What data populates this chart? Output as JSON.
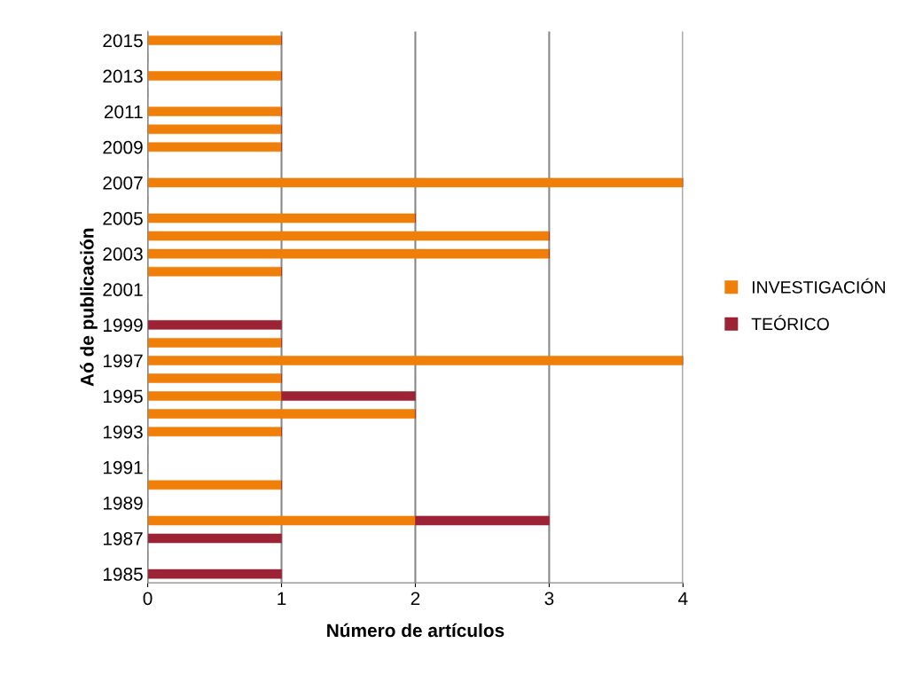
{
  "chart_data": {
    "type": "bar",
    "orientation": "horizontal",
    "stacked": true,
    "xlabel": "Número de artículos",
    "ylabel": "Aó de publicación",
    "categories": [
      "2015",
      null,
      "2013",
      null,
      "2011",
      null,
      "2009",
      null,
      "2007",
      null,
      "2005",
      null,
      "2003",
      null,
      "2001",
      null,
      "1999",
      null,
      "1997",
      null,
      "1995",
      null,
      "1993",
      null,
      "1991",
      null,
      "1989",
      null,
      "1987",
      null,
      "1985"
    ],
    "series": [
      {
        "name": "INVESTIGACIÓN",
        "color": "#f07f09",
        "values": [
          1,
          0,
          1,
          0,
          1,
          1,
          1,
          0,
          4,
          0,
          2,
          3,
          3,
          1,
          0,
          0,
          0,
          1,
          4,
          1,
          1,
          2,
          1,
          0,
          0,
          1,
          0,
          2,
          0,
          0,
          0
        ]
      },
      {
        "name": "TEÓRICO",
        "color": "#9b2335",
        "values": [
          0,
          0,
          0,
          0,
          0,
          0,
          0,
          0,
          0,
          0,
          0,
          0,
          0,
          0,
          0,
          0,
          1,
          0,
          0,
          0,
          1,
          0,
          0,
          0,
          0,
          0,
          0,
          1,
          1,
          0,
          1
        ]
      }
    ],
    "xlim": [
      0,
      4
    ],
    "xticks": [
      0,
      1,
      2,
      3,
      4
    ],
    "grid": "x",
    "legend": "right"
  }
}
